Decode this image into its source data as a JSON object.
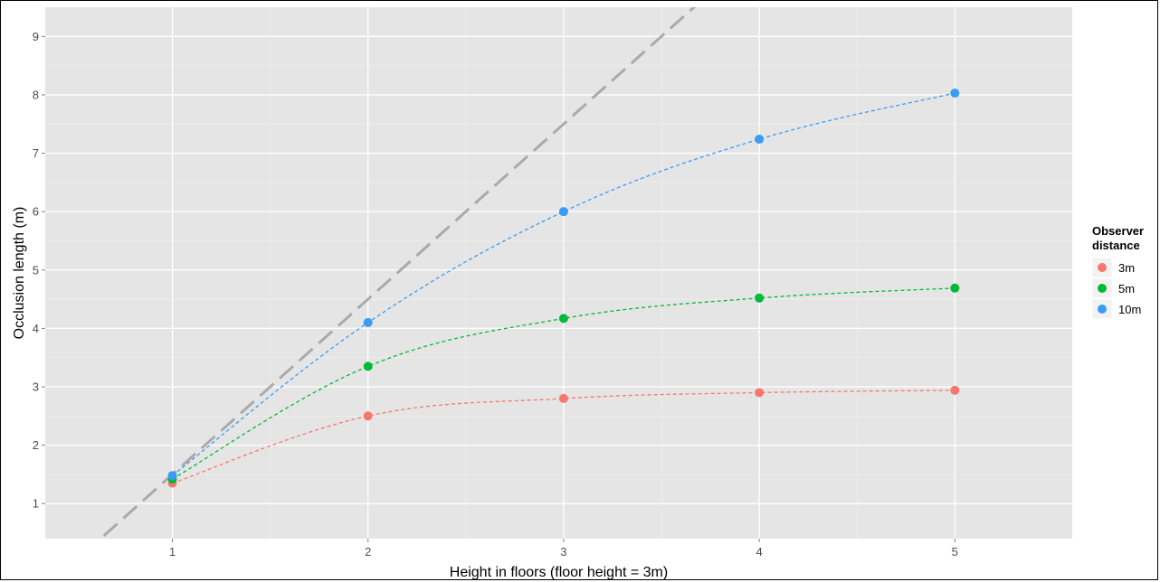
{
  "chart_data": {
    "type": "line",
    "title": "",
    "xlabel": "Height in floors (floor height = 3m)",
    "ylabel": "Occlusion length (m)",
    "xlim": [
      0.35,
      5.6
    ],
    "ylim": [
      0.4,
      9.5
    ],
    "x_ticks": [
      "1",
      "2",
      "3",
      "4",
      "5"
    ],
    "y_ticks": [
      "1",
      "2",
      "3",
      "4",
      "5",
      "6",
      "7",
      "8",
      "9"
    ],
    "grid": true,
    "background": "#e5e5e5",
    "legend": {
      "title_line1": "Observer",
      "title_line2": "distance",
      "position": "right"
    },
    "x": [
      1,
      2,
      3,
      4,
      5
    ],
    "series": [
      {
        "name": "3m",
        "color": "#f8766d",
        "values": [
          1.35,
          2.5,
          2.8,
          2.9,
          2.94
        ]
      },
      {
        "name": "5m",
        "color": "#00ba38",
        "values": [
          1.42,
          3.35,
          4.17,
          4.52,
          4.69
        ]
      },
      {
        "name": "10m",
        "color": "#3a9cf5",
        "values": [
          1.48,
          4.1,
          6.0,
          7.24,
          8.03
        ]
      }
    ],
    "reference_line": {
      "style": "long-dash",
      "color": "#aaaaaa",
      "slope": 3,
      "intercept": -1.5
    }
  }
}
